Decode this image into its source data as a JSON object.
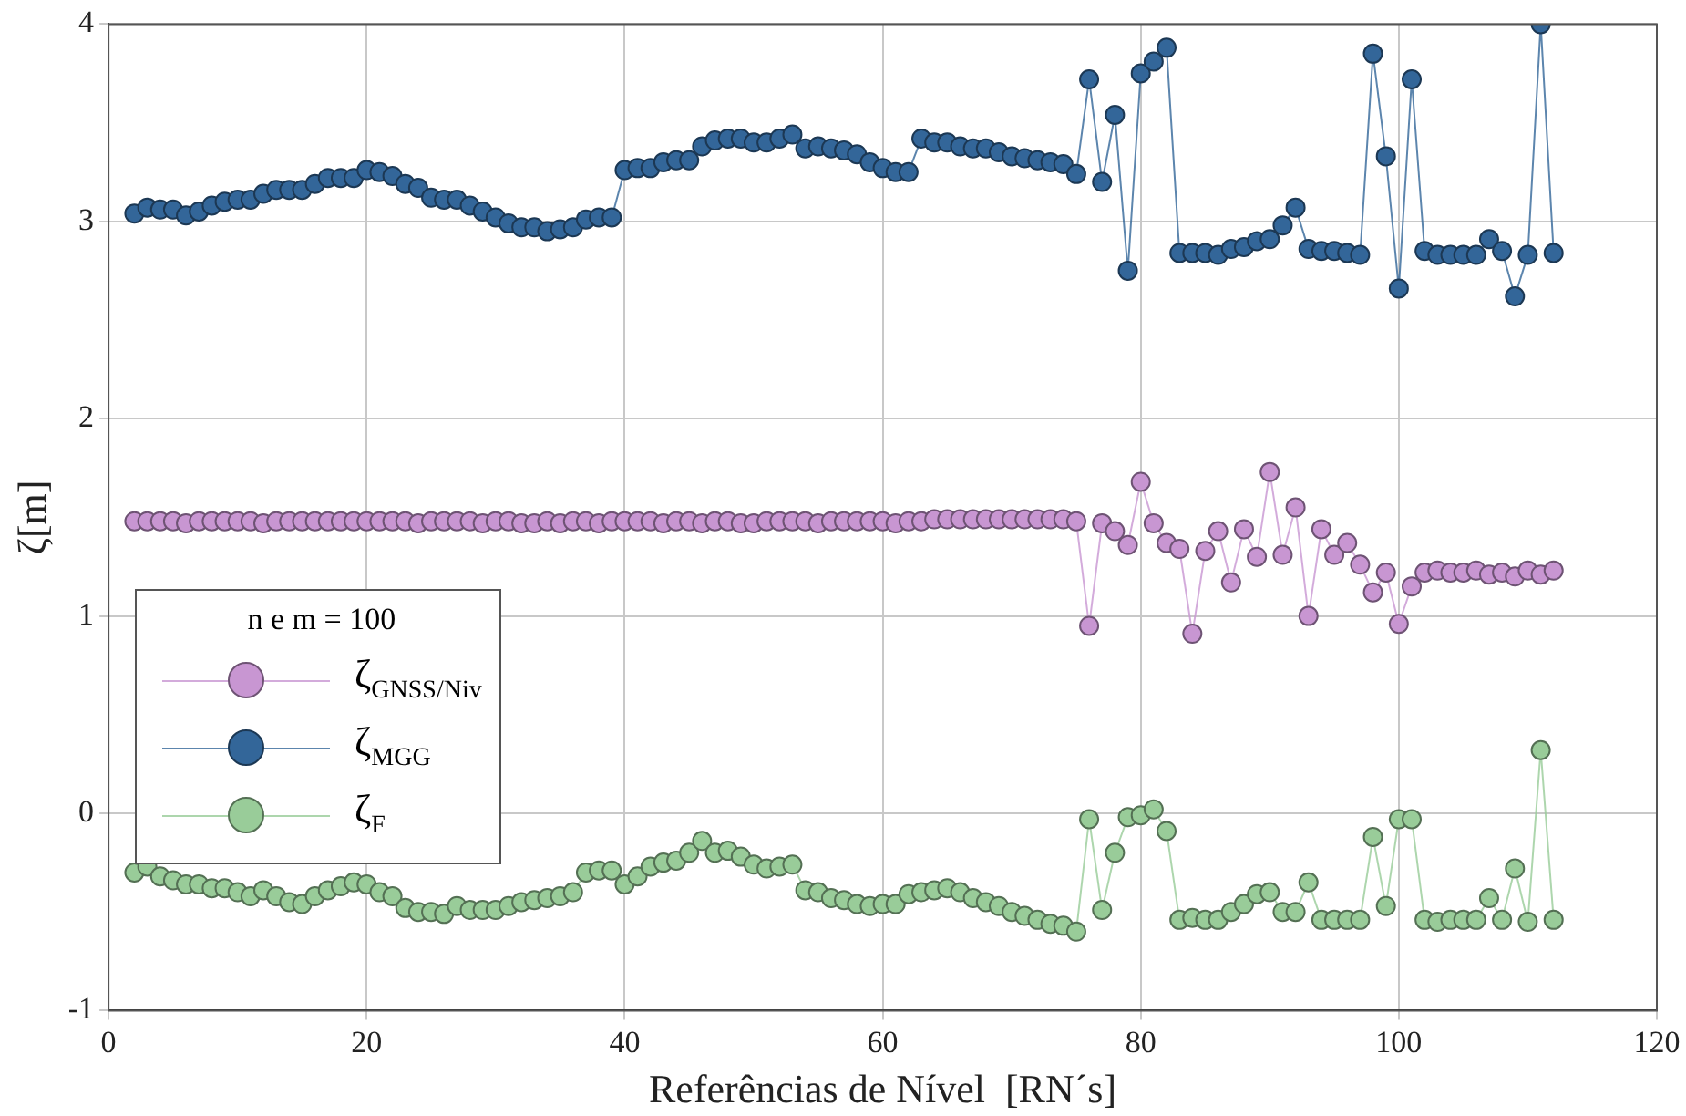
{
  "chart_data": {
    "type": "line",
    "xlabel": "Referências de Nível  [RN´s]",
    "ylabel": "ζ[m]",
    "legend_title": "n e m = 100",
    "x": [
      2,
      3,
      4,
      5,
      6,
      7,
      8,
      9,
      10,
      11,
      12,
      13,
      14,
      15,
      16,
      17,
      18,
      19,
      20,
      21,
      22,
      23,
      24,
      25,
      26,
      27,
      28,
      29,
      30,
      31,
      32,
      33,
      34,
      35,
      36,
      37,
      38,
      39,
      40,
      41,
      42,
      43,
      44,
      45,
      46,
      47,
      48,
      49,
      50,
      51,
      52,
      53,
      54,
      55,
      56,
      57,
      58,
      59,
      60,
      61,
      62,
      63,
      64,
      65,
      66,
      67,
      68,
      69,
      70,
      71,
      72,
      73,
      74,
      75,
      76,
      77,
      78,
      79,
      80,
      81,
      82,
      83,
      84,
      85,
      86,
      87,
      88,
      89,
      90,
      91,
      92,
      93,
      94,
      95,
      96,
      97,
      98,
      99,
      100,
      101,
      102,
      103,
      104,
      105,
      106,
      107,
      108,
      109,
      110,
      111,
      112
    ],
    "series": [
      {
        "name": "ζ$_{GNSS/Niv}$",
        "color": "#c896d2",
        "values": [
          1.48,
          1.48,
          1.48,
          1.48,
          1.47,
          1.48,
          1.48,
          1.48,
          1.48,
          1.48,
          1.47,
          1.48,
          1.48,
          1.48,
          1.48,
          1.48,
          1.48,
          1.48,
          1.48,
          1.48,
          1.48,
          1.48,
          1.47,
          1.48,
          1.48,
          1.48,
          1.48,
          1.47,
          1.48,
          1.48,
          1.47,
          1.47,
          1.48,
          1.47,
          1.48,
          1.48,
          1.47,
          1.48,
          1.48,
          1.48,
          1.48,
          1.47,
          1.48,
          1.48,
          1.47,
          1.48,
          1.48,
          1.47,
          1.47,
          1.48,
          1.48,
          1.48,
          1.48,
          1.47,
          1.48,
          1.48,
          1.48,
          1.48,
          1.48,
          1.47,
          1.48,
          1.48,
          1.49,
          1.49,
          1.49,
          1.49,
          1.49,
          1.49,
          1.49,
          1.49,
          1.49,
          1.49,
          1.49,
          1.48,
          0.95,
          1.47,
          1.43,
          1.36,
          1.68,
          1.47,
          1.37,
          1.34,
          0.91,
          1.33,
          1.43,
          1.17,
          1.44,
          1.3,
          1.73,
          1.31,
          1.55,
          1.0,
          1.44,
          1.31,
          1.37,
          1.26,
          1.12,
          1.22,
          0.96,
          1.15,
          1.22,
          1.23,
          1.22,
          1.22,
          1.23,
          1.21,
          1.22,
          1.2,
          1.23,
          1.21,
          1.23
        ]
      },
      {
        "name": "ζ$_{MGG}$",
        "color": "#336699",
        "values": [
          3.04,
          3.07,
          3.06,
          3.06,
          3.03,
          3.05,
          3.08,
          3.1,
          3.11,
          3.11,
          3.14,
          3.16,
          3.16,
          3.16,
          3.19,
          3.22,
          3.22,
          3.22,
          3.26,
          3.25,
          3.23,
          3.19,
          3.17,
          3.12,
          3.11,
          3.11,
          3.08,
          3.05,
          3.02,
          2.99,
          2.97,
          2.97,
          2.95,
          2.96,
          2.97,
          3.01,
          3.02,
          3.02,
          3.26,
          3.27,
          3.27,
          3.3,
          3.31,
          3.31,
          3.38,
          3.41,
          3.42,
          3.42,
          3.4,
          3.4,
          3.42,
          3.44,
          3.37,
          3.38,
          3.37,
          3.36,
          3.34,
          3.3,
          3.27,
          3.25,
          3.25,
          3.42,
          3.4,
          3.4,
          3.38,
          3.37,
          3.37,
          3.35,
          3.33,
          3.32,
          3.31,
          3.3,
          3.29,
          3.24,
          3.72,
          3.2,
          3.54,
          2.75,
          3.75,
          3.81,
          3.88,
          2.84,
          2.84,
          2.84,
          2.83,
          2.86,
          2.87,
          2.9,
          2.91,
          2.98,
          3.07,
          2.86,
          2.85,
          2.85,
          2.84,
          2.83,
          3.85,
          3.33,
          2.66,
          3.72,
          2.85,
          2.83,
          2.83,
          2.83,
          2.83,
          2.91,
          2.85,
          2.62,
          2.83,
          4.0,
          2.84
        ]
      },
      {
        "name": "ζ$_{F}$",
        "color": "#99cc99",
        "values": [
          -0.3,
          -0.27,
          -0.32,
          -0.34,
          -0.36,
          -0.36,
          -0.38,
          -0.38,
          -0.4,
          -0.42,
          -0.39,
          -0.42,
          -0.45,
          -0.46,
          -0.42,
          -0.39,
          -0.37,
          -0.35,
          -0.36,
          -0.4,
          -0.42,
          -0.48,
          -0.5,
          -0.5,
          -0.51,
          -0.47,
          -0.49,
          -0.49,
          -0.49,
          -0.47,
          -0.45,
          -0.44,
          -0.43,
          -0.42,
          -0.4,
          -0.3,
          -0.29,
          -0.29,
          -0.36,
          -0.32,
          -0.27,
          -0.25,
          -0.24,
          -0.2,
          -0.14,
          -0.2,
          -0.19,
          -0.22,
          -0.26,
          -0.28,
          -0.27,
          -0.26,
          -0.39,
          -0.4,
          -0.43,
          -0.44,
          -0.46,
          -0.47,
          -0.46,
          -0.46,
          -0.41,
          -0.4,
          -0.39,
          -0.38,
          -0.4,
          -0.43,
          -0.45,
          -0.47,
          -0.5,
          -0.52,
          -0.54,
          -0.56,
          -0.57,
          -0.6,
          -0.03,
          -0.49,
          -0.2,
          -0.02,
          -0.01,
          0.02,
          -0.09,
          -0.54,
          -0.53,
          -0.54,
          -0.54,
          -0.5,
          -0.46,
          -0.41,
          -0.4,
          -0.5,
          -0.5,
          -0.35,
          -0.54,
          -0.54,
          -0.54,
          -0.54,
          -0.12,
          -0.47,
          -0.03,
          -0.03,
          -0.54,
          -0.55,
          -0.54,
          -0.54,
          -0.54,
          -0.43,
          -0.54,
          -0.28,
          -0.55,
          0.32,
          -0.54
        ]
      }
    ],
    "xlim": [
      0,
      120
    ],
    "xticks": [
      0,
      20,
      40,
      60,
      80,
      100,
      120
    ],
    "ylim": [
      -1,
      4
    ],
    "yticks": [
      -1,
      0,
      1,
      2,
      3,
      4
    ],
    "grid": true,
    "legend": "bottom left",
    "marker": "circle",
    "line_style": "solid"
  }
}
